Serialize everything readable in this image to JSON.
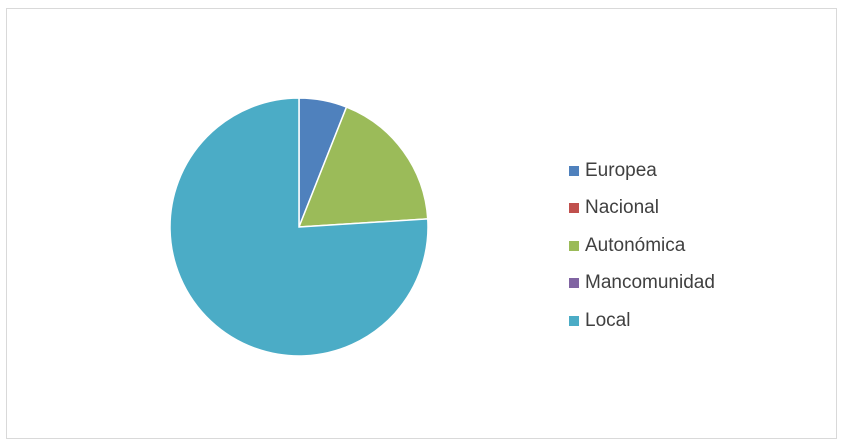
{
  "chart_data": {
    "type": "pie",
    "title": "",
    "categories": [
      "Europea",
      "Nacional",
      "Autonómica",
      "Mancomunidad",
      "Local"
    ],
    "values": [
      6,
      0,
      18,
      0,
      76
    ],
    "colors": [
      "#4F81BD",
      "#C0504D",
      "#9BBB59",
      "#8064A2",
      "#4BACC6"
    ],
    "legend_position": "right",
    "start_angle": "12 o'clock, clockwise"
  }
}
